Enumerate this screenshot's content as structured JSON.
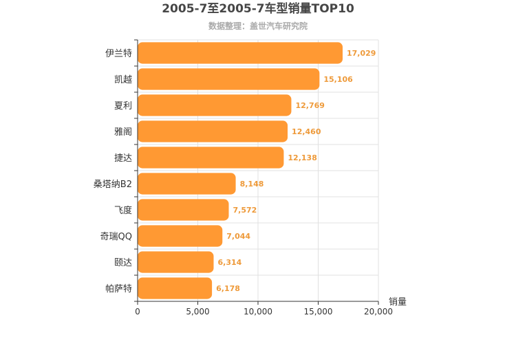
{
  "chart_data": {
    "type": "bar",
    "orientation": "horizontal",
    "title": "2005-7至2005-7车型销量TOP10",
    "subtitle": "数据整理：盖世汽车研究院",
    "xlabel": "销量",
    "ylabel": "",
    "xlim": [
      0,
      20000
    ],
    "xticks": [
      "0",
      "5,000",
      "10,000",
      "15,000",
      "20,000"
    ],
    "categories": [
      "伊兰特",
      "凯越",
      "夏利",
      "雅阁",
      "捷达",
      "桑塔纳B2",
      "飞度",
      "奇瑞QQ",
      "颐达",
      "帕萨特"
    ],
    "values": [
      17029,
      15106,
      12769,
      12460,
      12138,
      8148,
      7572,
      7044,
      6314,
      6178
    ],
    "value_labels": [
      "17,029",
      "15,106",
      "12,769",
      "12,460",
      "12,138",
      "8,148",
      "7,572",
      "7,044",
      "6,314",
      "6,178"
    ],
    "bar_color": "#ff9933",
    "label_color": "#ee9a3a",
    "grid": true
  }
}
